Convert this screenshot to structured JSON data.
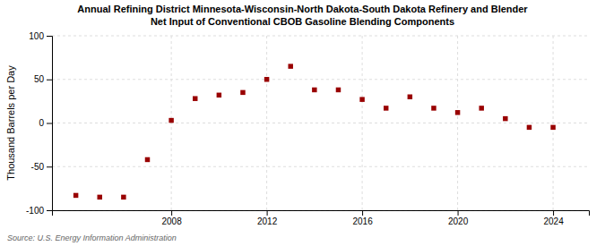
{
  "chart_data": {
    "type": "scatter",
    "title": "Annual Refining District Minnesota-Wisconsin-North Dakota-South Dakota Refinery and Blender\nNet Input of Conventional CBOB Gasoline Blending Components",
    "ylabel": "Thousand Barrels per Day",
    "source": "Source: U.S. Energy Information Administration",
    "x": [
      2004,
      2005,
      2006,
      2007,
      2008,
      2009,
      2010,
      2011,
      2012,
      2013,
      2014,
      2015,
      2016,
      2017,
      2018,
      2019,
      2020,
      2021,
      2022,
      2023,
      2024
    ],
    "values": [
      -83,
      -85,
      -85,
      -42,
      3,
      28,
      32,
      35,
      50,
      65,
      38,
      38,
      27,
      17,
      30,
      17,
      12,
      17,
      5,
      -5,
      -5
    ],
    "color": "#990000",
    "marker": "square",
    "xlim": [
      2003,
      2025.5
    ],
    "ylim": [
      -100,
      100
    ],
    "xticks": [
      2008,
      2012,
      2016,
      2020,
      2024
    ],
    "yticks": [
      -100,
      -50,
      0,
      50,
      100
    ],
    "grid": true
  }
}
